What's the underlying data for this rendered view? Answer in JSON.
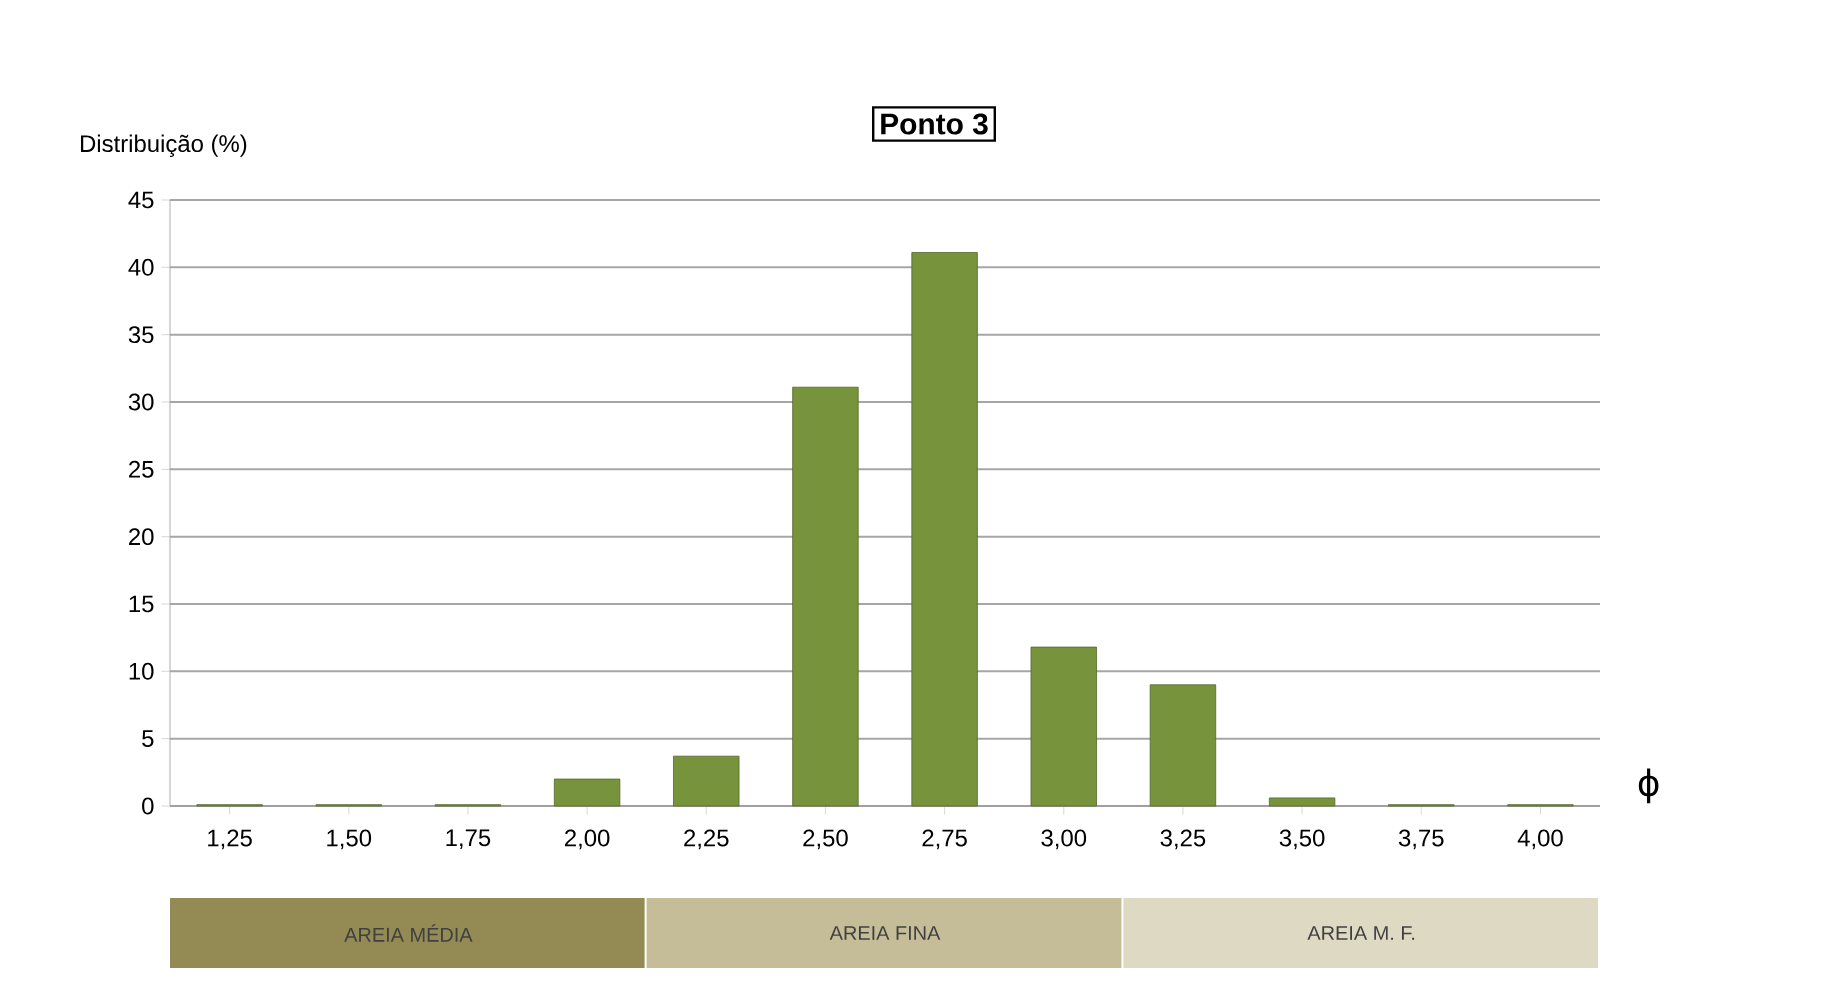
{
  "chart_data": {
    "type": "bar",
    "title": "Ponto 3",
    "ylabel": "Distribuição (%)",
    "xlabel": "ϕ",
    "categories": [
      "1,25",
      "1,50",
      "1,75",
      "2,00",
      "2,25",
      "2,50",
      "2,75",
      "3,00",
      "3,25",
      "3,50",
      "3,75",
      "4,00"
    ],
    "values": [
      0.1,
      0.1,
      0.1,
      2.0,
      3.7,
      31.1,
      41.1,
      11.8,
      9.0,
      0.6,
      0.1,
      0.1
    ],
    "color": "#77933c",
    "ylim": [
      0,
      45
    ],
    "yticks": [
      0,
      5,
      10,
      15,
      20,
      25,
      30,
      35,
      40,
      45
    ],
    "grid": "y",
    "annotations": [
      "AREIA MÉDIA",
      "AREIA FINA",
      "AREIA  M. F."
    ]
  }
}
